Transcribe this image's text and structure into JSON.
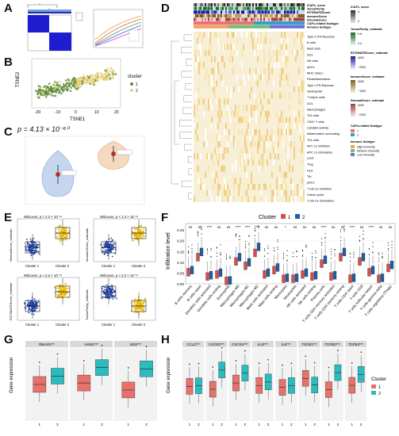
{
  "panels": {
    "A": {
      "letter": "A"
    },
    "B": {
      "letter": "B",
      "xlabel": "TSNE1",
      "ylabel": "TSNE2",
      "legend_title": "cluster",
      "legend_items": [
        "1",
        "2"
      ],
      "xticks": [
        "-20",
        "-10",
        "0",
        "10",
        "20"
      ]
    },
    "C": {
      "letter": "C",
      "p_value": "p = 4.13 × 10⁻⁶⁰"
    },
    "D": {
      "letter": "D",
      "top_tracks": [
        "iCAFs_score",
        "TumorPurity",
        "ESTIMATEScore",
        "ImmuneScore",
        "StromalScore",
        "CAFs-related Subtype",
        "Immune Subtype"
      ],
      "rows": [
        "B cells",
        "Mast cells",
        "DCs",
        "NK cells",
        "aDCs",
        "MHC class I",
        "Parainflammation",
        "Type I IFN Reponse",
        "Neutrophils",
        "T helper cells",
        "DCs",
        "Macrophages",
        "Th2 cells",
        "CD8+ T cells",
        "Cytolytic activity",
        "Inflammation−promoting",
        "Th1 cells",
        "APC co inhibition",
        "APC co stimulation",
        "CCR",
        "Treg",
        "HLA",
        "Tfh",
        "pDCs",
        "T cell co−inhibition",
        "Check−point",
        "T cell co−stimulation"
      ],
      "first_row": "Type II IFN Reponse",
      "legend": {
        "iCAFs_title": "iCAFs_score",
        "iCAFs_ticks": [
          "4",
          "0"
        ],
        "tumor_title": "TumorPurity_estimate",
        "tumor_ticks": [
          "0.8",
          "0.4"
        ],
        "estimate_title": "ESTIMATEScore_estimate",
        "estimate_ticks": [
          "4000",
          "−2000"
        ],
        "immune_title": "ImmuneScore_estimate",
        "immune_ticks": [
          "3000",
          "−1000"
        ],
        "stromal_title": "StromalScore_estimate",
        "stromal_ticks": [
          "2000",
          "−2000"
        ],
        "cafs_title": "CAFs-related Subtype",
        "cafs_items": [
          "1",
          "2"
        ],
        "immune_subtype_title": "Immune Subtype",
        "immune_subtype_items": [
          "High Immunity",
          "Medium Immunity",
          "Low Immunity"
        ]
      }
    },
    "E": {
      "letter": "E",
      "subplots": [
        {
          "ylabel": "StromalScore_estimate",
          "stat": "Wilcoxon, p < 2.2 × 10⁻¹⁶"
        },
        {
          "ylabel": "ImmuneScore_estimate",
          "stat": "Wilcoxon, p < 2.2 × 10⁻¹⁶"
        },
        {
          "ylabel": "ESTIMATEScore_estimate",
          "stat": "Wilcoxon, p < 2.2 × 10⁻¹⁶"
        },
        {
          "ylabel": "TumorPurity_estimate",
          "stat": "Wilcoxon, p < 2.2 × 10⁻¹⁶"
        }
      ],
      "xcats": [
        "Cluster 1",
        "Cluster 2"
      ]
    },
    "F": {
      "letter": "F",
      "legend_title": "Cluster",
      "legend_items": [
        "1",
        "2"
      ],
      "ylabel": "Infiltration level",
      "yticks": [
        "0.00",
        "0.05",
        "0.10",
        "0.15",
        "0.20",
        "0.25"
      ],
      "sig": [
        "ns",
        "ns",
        "****",
        "ns",
        "ns",
        "****",
        "****",
        "****",
        "ns",
        "ns",
        "*",
        "ns",
        "ns",
        "ns",
        "****",
        "ns",
        "ns",
        "****",
        "ns",
        "****",
        "ns",
        "ns"
      ],
      "categories": [
        "B cells memory",
        "B cells naive",
        "Dendritic cells activated",
        "Dendritic cells resting",
        "Eosinophils",
        "Macrophages M0",
        "Macrophages M1",
        "Macrophages M2",
        "Mast cells activated",
        "Mast cells resting",
        "Monocytes",
        "Neutrophils",
        "NK cells activated",
        "NK cells resting",
        "Plasma cells",
        "T cells CD4 memory activated",
        "T cells CD4 memory resting",
        "T cells CD4 naive",
        "T cells CD8",
        "T cells follicular helper",
        "T cells gamma delta",
        "T cells regulatory (Tregs)"
      ]
    },
    "G": {
      "letter": "G",
      "ylabel": "Gene expression",
      "genes": [
        "RBAX5***",
        "AXIN2***",
        "MS2***"
      ],
      "xcats": [
        "1",
        "2"
      ]
    },
    "H": {
      "letter": "H",
      "ylabel": "Gene expression",
      "genes": [
        "CCL2***",
        "CXCR2***",
        "CXCR4***",
        "IL10***",
        "IL6***",
        "TGFB1***",
        "TGFB2***",
        "TGFB3***"
      ],
      "legend_title": "Cluster",
      "legend_items": [
        "1",
        "2"
      ],
      "xcats": [
        "1",
        "2"
      ]
    }
  },
  "colors": {
    "cluster1": "#e8716c",
    "cluster2": "#2bbcbf",
    "blueF": "#1f5fa3",
    "redF": "#d64f4f",
    "gold": "#e8b800",
    "navy": "#1f3fa6"
  }
}
